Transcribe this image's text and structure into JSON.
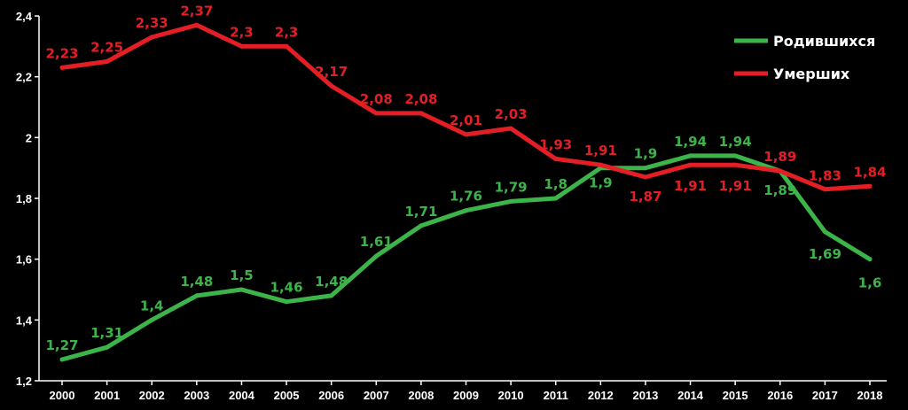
{
  "chart_data": {
    "type": "line",
    "categories": [
      "2000",
      "2001",
      "2002",
      "2003",
      "2004",
      "2005",
      "2006",
      "2007",
      "2008",
      "2009",
      "2010",
      "2011",
      "2012",
      "2013",
      "2014",
      "2015",
      "2016",
      "2017",
      "2018"
    ],
    "ylim": [
      1.2,
      2.4
    ],
    "yticks": [
      "1,2",
      "1,4",
      "1,6",
      "1,8",
      "2",
      "2,2",
      "2,4"
    ],
    "grid": false,
    "legend_position": "top-right",
    "series": [
      {
        "name": "Родившихся",
        "color": "#3cb44a",
        "values": [
          1.27,
          1.31,
          1.4,
          1.48,
          1.5,
          1.46,
          1.48,
          1.61,
          1.71,
          1.76,
          1.79,
          1.8,
          1.9,
          1.9,
          1.94,
          1.94,
          1.89,
          1.69,
          1.6
        ],
        "labels": [
          "1,27",
          "1,31",
          "1,4",
          "1,48",
          "1,5",
          "1,46",
          "1,48",
          "1,61",
          "1,71",
          "1,76",
          "1,79",
          "1,8",
          "1,9",
          "1,9",
          "1,94",
          "1,94",
          "1,89",
          "1,69",
          "1,6"
        ]
      },
      {
        "name": "Умерших",
        "color": "#e31e24",
        "values": [
          2.23,
          2.25,
          2.33,
          2.37,
          2.3,
          2.3,
          2.17,
          2.08,
          2.08,
          2.01,
          2.03,
          1.93,
          1.91,
          1.87,
          1.91,
          1.91,
          1.89,
          1.83,
          1.84
        ],
        "labels": [
          "2,23",
          "2,25",
          "2,33",
          "2,37",
          "2,3",
          "2,3",
          "2,17",
          "2,08",
          "2,08",
          "2,01",
          "2,03",
          "1,93",
          "1,91",
          "1,87",
          "1,91",
          "1,91",
          "1,89",
          "1,83",
          "1,84"
        ]
      }
    ]
  }
}
